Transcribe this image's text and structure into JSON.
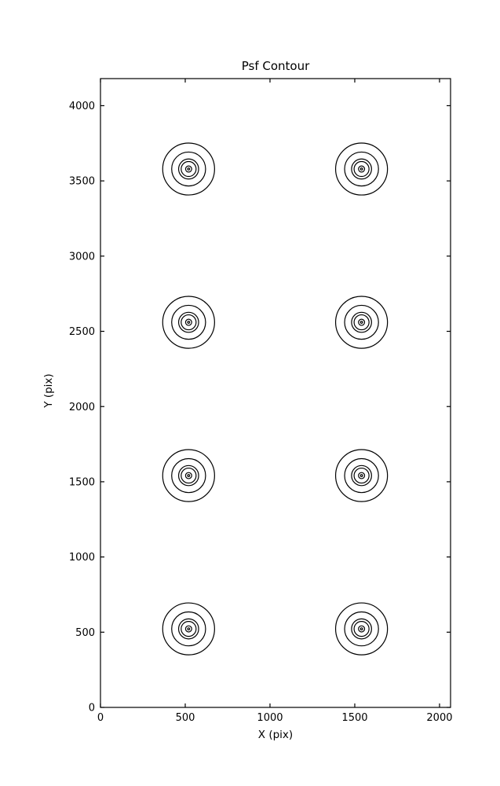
{
  "figure": {
    "background": "#ffffff",
    "line_color": "#000000"
  },
  "chart_data": {
    "type": "contour",
    "title": "Psf Contour",
    "xlabel": "X (pix)",
    "ylabel": "Y (pix)",
    "xlim": [
      0,
      2065
    ],
    "ylim": [
      0,
      4180
    ],
    "xticks": [
      0,
      500,
      1000,
      1500,
      2000
    ],
    "yticks": [
      0,
      500,
      1000,
      1500,
      2000,
      2500,
      3000,
      3500,
      4000
    ],
    "grid": false,
    "legend": "none",
    "tick_direction": "in",
    "ticks_all_sides": true,
    "contour_color": "#000000",
    "background": "#ffffff",
    "clusters": {
      "description": "8 identical PSF contour clusters on a 2x4 grid",
      "centers_x": [
        520,
        1540
      ],
      "centers_y": [
        522,
        1541,
        2560,
        3579
      ],
      "ring_radii": [
        153,
        100,
        59,
        44,
        18,
        6
      ]
    }
  }
}
